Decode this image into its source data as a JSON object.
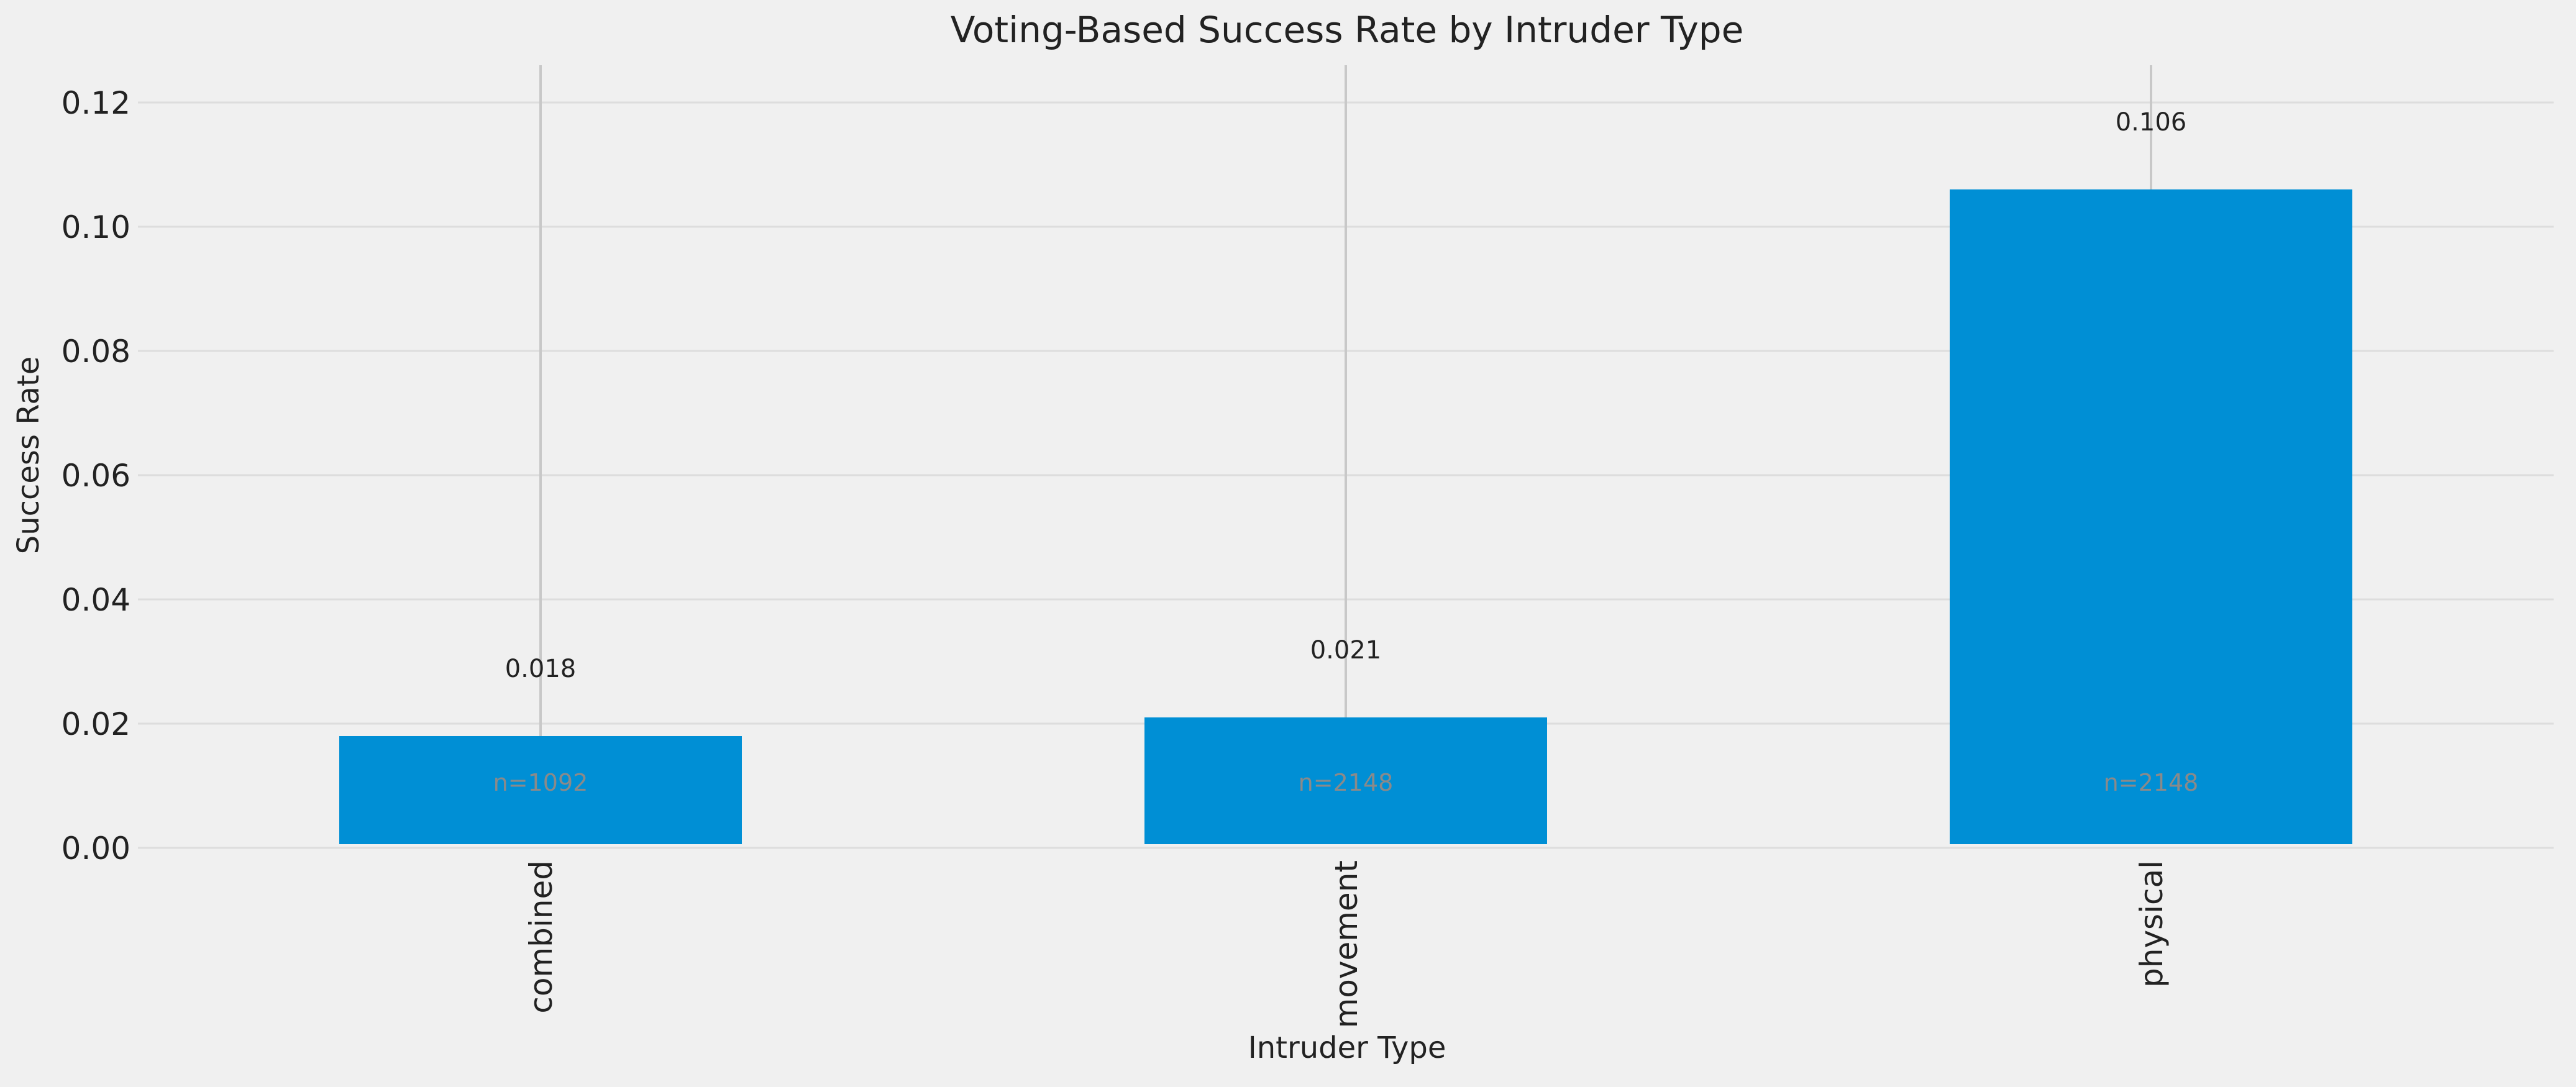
{
  "chart_data": {
    "type": "bar",
    "title": "Voting-Based Success Rate by Intruder Type",
    "xlabel": "Intruder Type",
    "ylabel": "Success Rate",
    "categories": [
      "combined",
      "movement",
      "physical"
    ],
    "values": [
      0.018,
      0.021,
      0.106
    ],
    "value_labels": [
      "0.018",
      "0.021",
      "0.106"
    ],
    "count_labels": [
      "n=1092",
      "n=2148",
      "n=2148"
    ],
    "ylim": [
      0,
      0.126
    ],
    "yticks": [
      0.0,
      0.02,
      0.04,
      0.06,
      0.08,
      0.1,
      0.12
    ],
    "ytick_labels": [
      "0.00",
      "0.02",
      "0.04",
      "0.06",
      "0.08",
      "0.10",
      "0.12"
    ],
    "grid": true,
    "legend": false,
    "colors": {
      "bar": "#008fd5",
      "background": "#f0f0f0",
      "grid": "#dddddd",
      "error_line": "#c8c8c8",
      "text": "#222222",
      "count_text": "#8a8a8a"
    }
  }
}
